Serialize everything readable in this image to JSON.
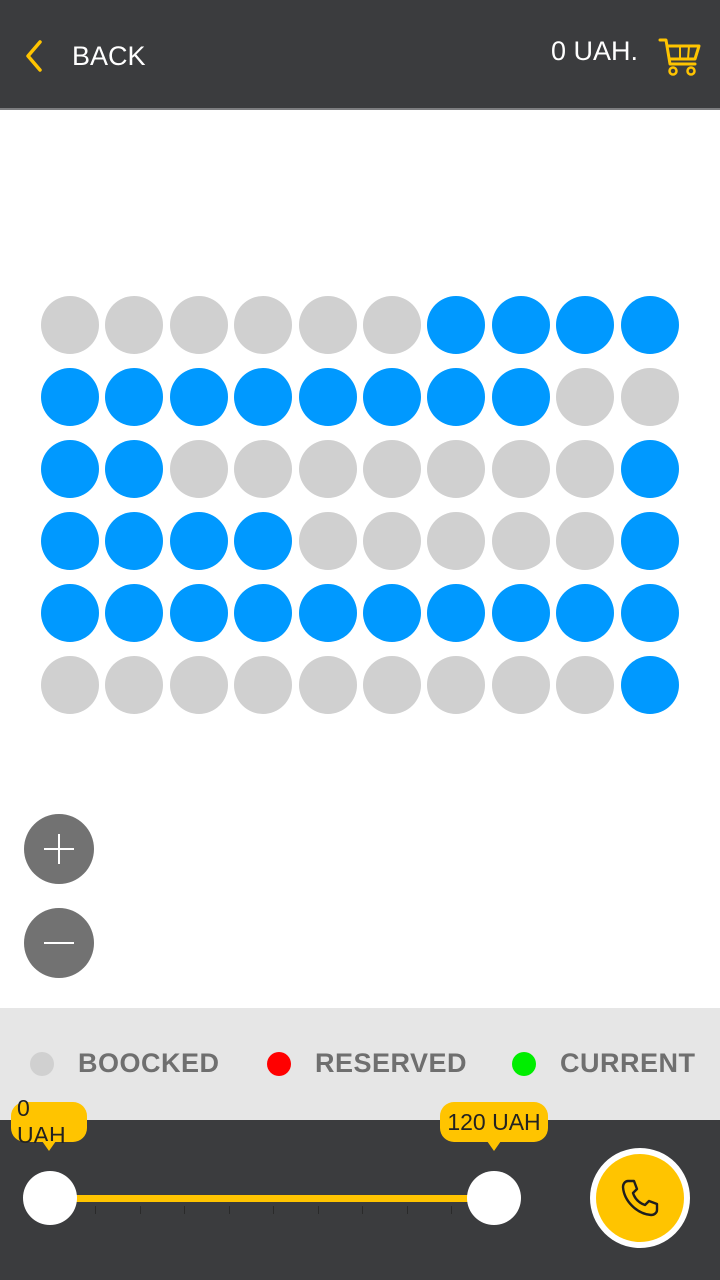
{
  "header": {
    "back_label": "BACK",
    "price_label": "0 UAH.",
    "back_icon": "chevron-left-icon",
    "cart_icon": "cart-icon"
  },
  "seat_map": {
    "status_colors": {
      "free": "#0099ff",
      "booked": "#d0d0d0"
    },
    "rows": [
      [
        "booked",
        "booked",
        "booked",
        "booked",
        "booked",
        "booked",
        "free",
        "free",
        "free",
        "free"
      ],
      [
        "free",
        "free",
        "free",
        "free",
        "free",
        "free",
        "free",
        "free",
        "booked",
        "booked"
      ],
      [
        "free",
        "free",
        "booked",
        "booked",
        "booked",
        "booked",
        "booked",
        "booked",
        "booked",
        "free"
      ],
      [
        "free",
        "free",
        "free",
        "free",
        "booked",
        "booked",
        "booked",
        "booked",
        "booked",
        "free"
      ],
      [
        "free",
        "free",
        "free",
        "free",
        "free",
        "free",
        "free",
        "free",
        "free",
        "free"
      ],
      [
        "booked",
        "booked",
        "booked",
        "booked",
        "booked",
        "booked",
        "booked",
        "booked",
        "booked",
        "free"
      ]
    ]
  },
  "zoom": {
    "in_icon": "plus-icon",
    "out_icon": "minus-icon"
  },
  "legend": [
    {
      "label": "BOOCKED",
      "color": "#d0d0d0"
    },
    {
      "label": "RESERVED",
      "color": "#ff0000"
    },
    {
      "label": "CURRENT",
      "color": "#00ee00"
    }
  ],
  "price_filter": {
    "min_label": "0 UAH",
    "max_label": "120 UAH",
    "min_value": 0,
    "max_value": 120,
    "accent_color": "#ffc400"
  },
  "call_button": {
    "icon": "phone-icon"
  }
}
